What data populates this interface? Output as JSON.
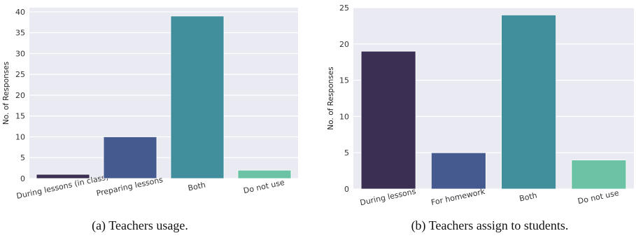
{
  "chart_data": [
    {
      "type": "bar",
      "caption": "(a) Teachers usage.",
      "ylabel": "No. of Responses",
      "xlabel": "",
      "categories": [
        "During lessons (in class)",
        "Preparing lessons",
        "Both",
        "Do not use"
      ],
      "values": [
        1,
        10,
        39,
        2
      ],
      "colors": [
        "#3b2f54",
        "#455b8f",
        "#418e9c",
        "#6bc2a4"
      ],
      "ylim": [
        0,
        41
      ],
      "yticks": [
        "0",
        "5",
        "10",
        "15",
        "20",
        "25",
        "30",
        "35",
        "40"
      ],
      "grid": true,
      "background": "#eaeaf2"
    },
    {
      "type": "bar",
      "caption": "(b) Teachers assign to students.",
      "ylabel": "No. of Responses",
      "xlabel": "",
      "categories": [
        "During lessons",
        "For homework",
        "Both",
        "Do not use"
      ],
      "values": [
        19,
        5,
        24,
        4
      ],
      "colors": [
        "#3b2f54",
        "#455b8f",
        "#418e9c",
        "#6bc2a4"
      ],
      "ylim": [
        0,
        25
      ],
      "yticks": [
        "0",
        "5",
        "10",
        "15",
        "20",
        "25"
      ],
      "grid": true,
      "background": "#eaeaf2"
    }
  ]
}
